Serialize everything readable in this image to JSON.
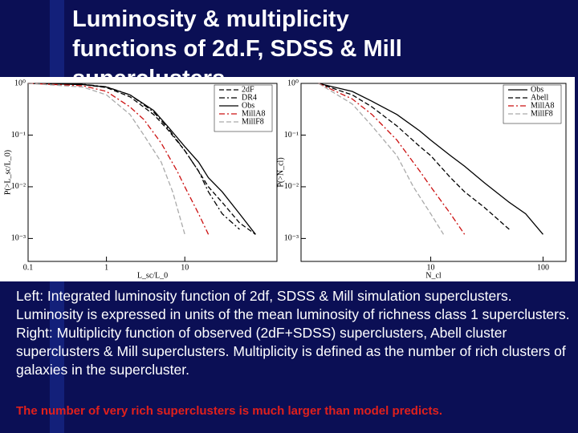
{
  "slide": {
    "title": [
      "Luminosity & multiplicity",
      "functions of 2d.F, SDSS & Mill",
      "superclusters"
    ],
    "caption": [
      "Left: Integrated luminosity function of 2df, SDSS & Mill simulation superclusters. Luminosity is expressed in units of the mean luminosity of richness class 1 superclusters.",
      "Right: Multiplicity function of observed (2dF+SDSS) superclusters, Abell cluster superclusters & Mill superclusters. Multiplicity is defined as the number of rich clusters of galaxies in the supercluster."
    ],
    "conclusion": "The number of very rich superclusters is much larger than model predicts."
  },
  "chart_data": [
    {
      "type": "line",
      "xlabel": "L_sc/L_0",
      "ylabel": "P(>L_sc/L_0)",
      "xlog": true,
      "ylog": true,
      "xlim": [
        0.1,
        150
      ],
      "xticks": [
        0.1,
        1,
        10
      ],
      "ylim": [
        0.00036,
        1
      ],
      "yticks": [
        {
          "value": 1,
          "label": "10⁰"
        },
        {
          "value": 0.1,
          "label": "10⁻¹"
        },
        {
          "value": 0.01,
          "label": "10⁻²"
        },
        {
          "value": 0.001,
          "label": "10⁻³"
        }
      ],
      "legend": "upper right",
      "series": [
        {
          "name": "2dF",
          "color": "#000000",
          "style": "dashed",
          "x": [
            0.1,
            0.5,
            1,
            2,
            4,
            6,
            10,
            15,
            20,
            30,
            50,
            80
          ],
          "values": [
            1,
            0.95,
            0.83,
            0.55,
            0.25,
            0.13,
            0.05,
            0.02,
            0.01,
            0.005,
            0.002,
            0.0012
          ]
        },
        {
          "name": "DR4",
          "color": "#000000",
          "style": "dashdot",
          "x": [
            0.1,
            0.5,
            1,
            2,
            4,
            6,
            10,
            15,
            20,
            30,
            50
          ],
          "values": [
            1,
            0.96,
            0.86,
            0.6,
            0.28,
            0.14,
            0.05,
            0.02,
            0.008,
            0.003,
            0.0015
          ]
        },
        {
          "name": "Obs",
          "color": "#000000",
          "style": "solid",
          "x": [
            0.1,
            0.5,
            1,
            2,
            4,
            6,
            10,
            15,
            20,
            30,
            50,
            80
          ],
          "values": [
            1,
            0.95,
            0.85,
            0.6,
            0.3,
            0.15,
            0.06,
            0.03,
            0.015,
            0.008,
            0.003,
            0.0012
          ]
        },
        {
          "name": "MillA8",
          "color": "#cc1111",
          "style": "dashdot",
          "x": [
            0.1,
            0.5,
            1,
            2,
            3,
            5,
            8,
            10,
            15,
            20
          ],
          "values": [
            1,
            0.9,
            0.7,
            0.35,
            0.2,
            0.07,
            0.02,
            0.01,
            0.003,
            0.0012
          ]
        },
        {
          "name": "MillF8",
          "color": "#aaaaaa",
          "style": "dashed",
          "x": [
            0.1,
            0.5,
            1,
            2,
            3,
            5,
            7,
            10
          ],
          "values": [
            1,
            0.85,
            0.6,
            0.25,
            0.1,
            0.03,
            0.008,
            0.0012
          ]
        }
      ]
    },
    {
      "type": "line",
      "xlabel": "N_cl",
      "ylabel": "P(>N_cl)",
      "xlog": true,
      "ylog": true,
      "xlim": [
        0.7,
        160
      ],
      "xticks": [
        10,
        100
      ],
      "ylim": [
        0.00036,
        1
      ],
      "yticks": [
        {
          "value": 1,
          "label": "10⁰"
        },
        {
          "value": 0.1,
          "label": "10⁻¹"
        },
        {
          "value": 0.01,
          "label": "10⁻²"
        },
        {
          "value": 0.001,
          "label": "10⁻³"
        }
      ],
      "legend": "upper right",
      "series": [
        {
          "name": "Obs",
          "color": "#000000",
          "style": "solid",
          "x": [
            1,
            2,
            3,
            5,
            8,
            10,
            15,
            20,
            30,
            50,
            70,
            100
          ],
          "values": [
            1,
            0.7,
            0.45,
            0.25,
            0.12,
            0.08,
            0.04,
            0.025,
            0.012,
            0.005,
            0.003,
            0.0012
          ]
        },
        {
          "name": "Abell",
          "color": "#000000",
          "style": "dashed",
          "x": [
            1,
            2,
            3,
            5,
            8,
            10,
            15,
            20,
            30,
            50
          ],
          "values": [
            1,
            0.6,
            0.35,
            0.15,
            0.06,
            0.04,
            0.015,
            0.008,
            0.004,
            0.0015
          ]
        },
        {
          "name": "MillA8",
          "color": "#cc1111",
          "style": "dashdot",
          "x": [
            1,
            2,
            3,
            5,
            8,
            10,
            15,
            20
          ],
          "values": [
            1,
            0.5,
            0.25,
            0.08,
            0.02,
            0.01,
            0.003,
            0.0012
          ]
        },
        {
          "name": "MillF8",
          "color": "#aaaaaa",
          "style": "dashed",
          "x": [
            1,
            2,
            3,
            5,
            7,
            10,
            13
          ],
          "values": [
            1,
            0.4,
            0.15,
            0.04,
            0.01,
            0.003,
            0.0012
          ]
        }
      ]
    }
  ]
}
